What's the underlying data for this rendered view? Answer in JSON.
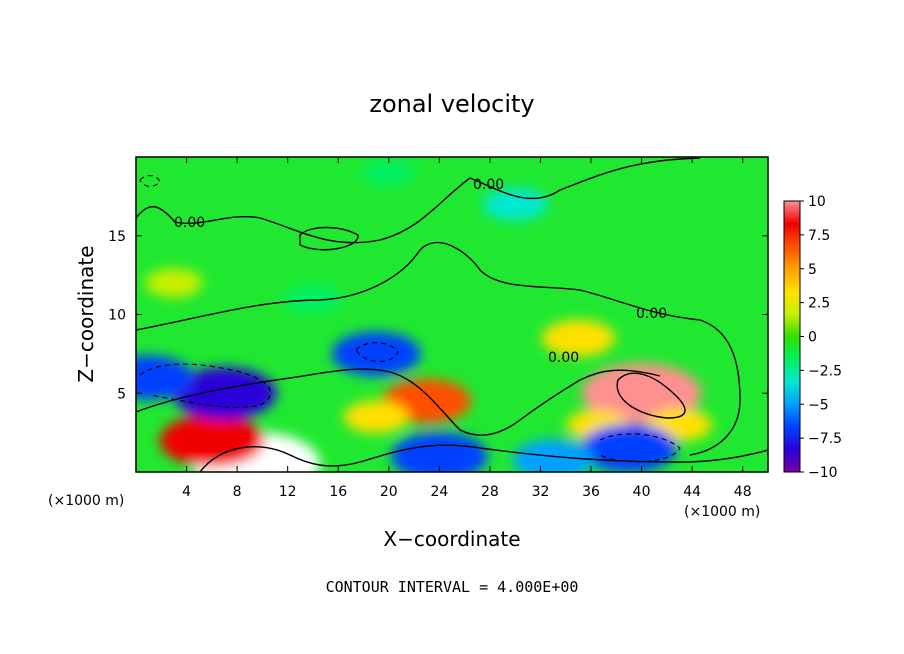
{
  "chart_data": {
    "type": "heatmap",
    "title": "zonal velocity",
    "xlabel": "X−coordinate",
    "ylabel": "Z−coordinate",
    "x_unit": "(×1000 m)",
    "z_unit": "(×1000 m)",
    "xlim": [
      0,
      50
    ],
    "ylim": [
      0,
      20
    ],
    "x_ticks": [
      "4",
      "8",
      "12",
      "16",
      "20",
      "24",
      "28",
      "32",
      "36",
      "40",
      "44",
      "48"
    ],
    "y_ticks": [
      "5",
      "10",
      "15"
    ],
    "colorbar": {
      "min": -10,
      "max": 10,
      "ticks": [
        "10",
        "7.5",
        "5",
        "2.5",
        "0",
        "−2.5",
        "−5",
        "−7.5",
        "−10"
      ],
      "colors": [
        "#7a00a8",
        "#2a00d8",
        "#0040ff",
        "#00a0ff",
        "#00e8d0",
        "#00f060",
        "#30e000",
        "#c8f000",
        "#ffe000",
        "#ffa000",
        "#ff5000",
        "#f00000",
        "#ff9090"
      ]
    },
    "contour_labels": [
      "0.00",
      "0.00",
      "0.00",
      "0.00"
    ],
    "contour_interval_note": "CONTOUR INTERVAL = 4.000E+00",
    "features": [
      {
        "x": 40,
        "z": 5,
        "value": 10
      },
      {
        "x": 9.5,
        "z": 0.5,
        "value": 11
      },
      {
        "x": 6,
        "z": 2,
        "value": 8
      },
      {
        "x": 23,
        "z": 4.5,
        "value": 6
      },
      {
        "x": 19,
        "z": 3.5,
        "value": 3
      },
      {
        "x": 35,
        "z": 8.5,
        "value": 4
      },
      {
        "x": 36.5,
        "z": 3,
        "value": 2.5
      },
      {
        "x": 43,
        "z": 3,
        "value": 3
      },
      {
        "x": 7,
        "z": 5,
        "value": -8
      },
      {
        "x": 1,
        "z": 6,
        "value": -6
      },
      {
        "x": 19,
        "z": 7.5,
        "value": -6
      },
      {
        "x": 24,
        "z": 1,
        "value": -7
      },
      {
        "x": 39,
        "z": 1.5,
        "value": -7
      },
      {
        "x": 33,
        "z": 0.8,
        "value": -5
      },
      {
        "x": 14,
        "z": 11,
        "value": -2
      },
      {
        "x": 30,
        "z": 17,
        "value": -3
      },
      {
        "x": 20,
        "z": 19,
        "value": -1.5
      },
      {
        "x": 3,
        "z": 12,
        "value": 2
      }
    ]
  }
}
